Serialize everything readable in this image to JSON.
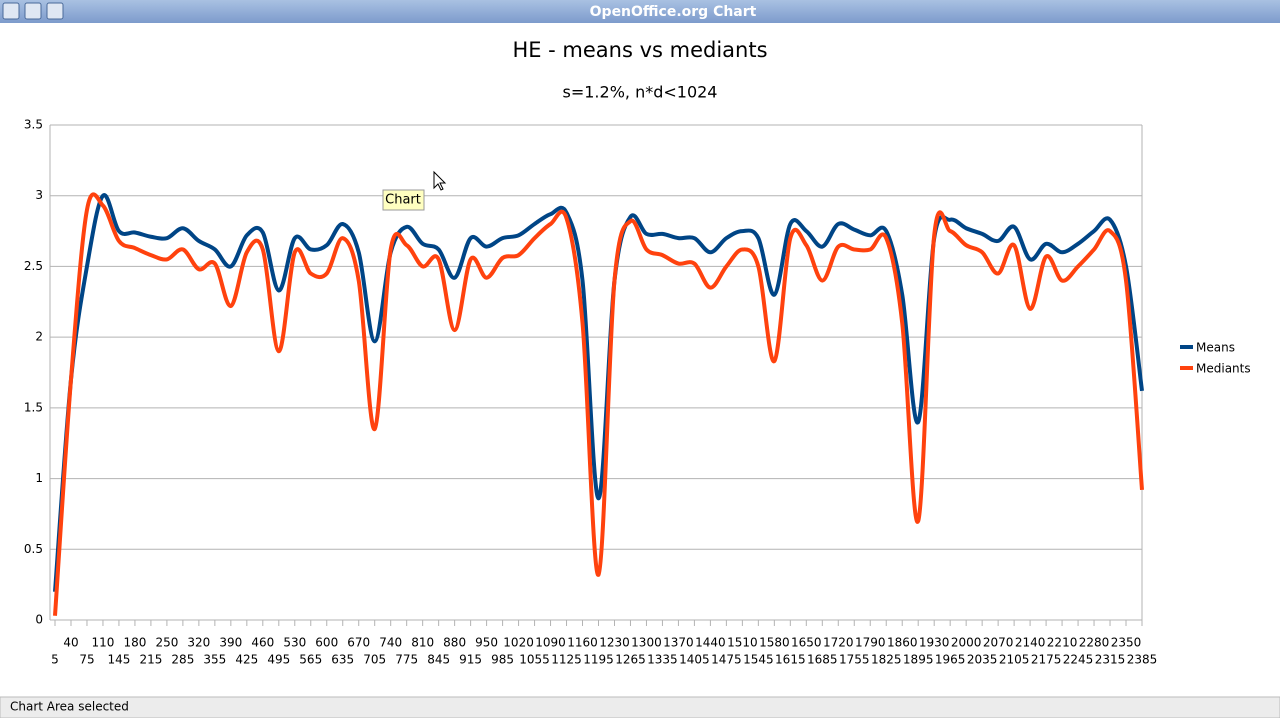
{
  "window": {
    "title": "OpenOffice.org Chart"
  },
  "status": "Chart Area selected",
  "tooltip": "Chart",
  "chart_data": {
    "type": "line",
    "title": "HE - means vs mediants",
    "subtitle": "s=1.2%, n*d<1024",
    "categories": [
      5,
      40,
      75,
      110,
      145,
      180,
      215,
      250,
      285,
      320,
      355,
      390,
      425,
      460,
      495,
      530,
      565,
      600,
      635,
      670,
      705,
      740,
      775,
      810,
      845,
      880,
      915,
      950,
      985,
      1020,
      1055,
      1090,
      1125,
      1160,
      1195,
      1230,
      1265,
      1300,
      1335,
      1370,
      1405,
      1440,
      1475,
      1510,
      1545,
      1580,
      1615,
      1650,
      1685,
      1720,
      1755,
      1790,
      1825,
      1860,
      1895,
      1930,
      1965,
      2000,
      2035,
      2070,
      2105,
      2140,
      2175,
      2210,
      2245,
      2280,
      2315,
      2350,
      2385
    ],
    "series": [
      {
        "name": "Means",
        "color": "#004586",
        "values": [
          0.2,
          1.7,
          2.5,
          3.0,
          2.75,
          2.74,
          2.71,
          2.7,
          2.77,
          2.68,
          2.62,
          2.5,
          2.72,
          2.74,
          2.33,
          2.7,
          2.62,
          2.65,
          2.8,
          2.6,
          1.97,
          2.6,
          2.78,
          2.66,
          2.62,
          2.42,
          2.7,
          2.64,
          2.7,
          2.72,
          2.8,
          2.87,
          2.88,
          2.4,
          0.86,
          2.4,
          2.85,
          2.73,
          2.73,
          2.7,
          2.7,
          2.6,
          2.7,
          2.75,
          2.7,
          2.3,
          2.8,
          2.75,
          2.64,
          2.8,
          2.76,
          2.72,
          2.75,
          2.3,
          1.4,
          2.7,
          2.83,
          2.77,
          2.73,
          2.68,
          2.78,
          2.55,
          2.66,
          2.6,
          2.66,
          2.75,
          2.83,
          2.5,
          1.62
        ]
      },
      {
        "name": "Mediants",
        "color": "#ff420e",
        "values": [
          0.03,
          1.7,
          2.9,
          2.93,
          2.68,
          2.63,
          2.58,
          2.55,
          2.62,
          2.48,
          2.52,
          2.22,
          2.6,
          2.62,
          1.9,
          2.6,
          2.45,
          2.45,
          2.7,
          2.4,
          1.35,
          2.62,
          2.65,
          2.5,
          2.55,
          2.05,
          2.55,
          2.42,
          2.56,
          2.58,
          2.7,
          2.8,
          2.84,
          2.1,
          0.32,
          2.4,
          2.82,
          2.62,
          2.58,
          2.52,
          2.52,
          2.35,
          2.5,
          2.62,
          2.5,
          1.83,
          2.7,
          2.65,
          2.4,
          2.64,
          2.62,
          2.62,
          2.7,
          2.1,
          0.7,
          2.72,
          2.75,
          2.65,
          2.6,
          2.45,
          2.65,
          2.2,
          2.57,
          2.4,
          2.5,
          2.62,
          2.75,
          2.4,
          0.92
        ]
      }
    ],
    "ylim": [
      0,
      3.5
    ],
    "yticks": [
      0,
      0.5,
      1,
      1.5,
      2,
      2.5,
      3,
      3.5
    ],
    "grid": true,
    "legend": "right"
  }
}
